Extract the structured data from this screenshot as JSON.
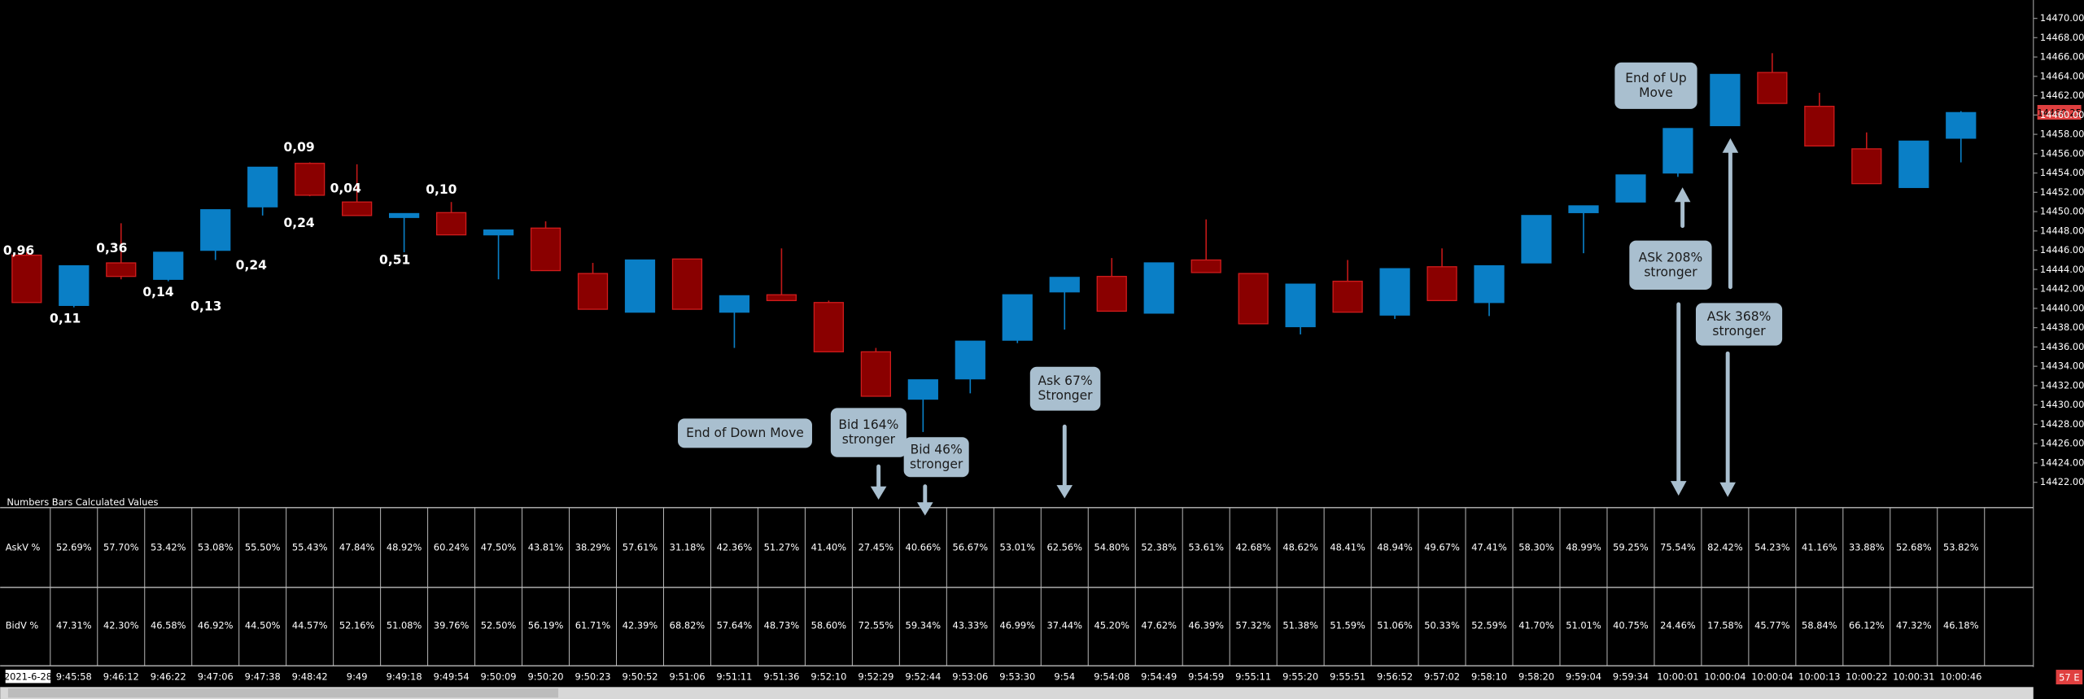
{
  "chart_data": {
    "type": "candlestick",
    "categories": [
      "2021-6-28",
      "9:45:58",
      "9:46:12",
      "9:46:22",
      "9:47:06",
      "9:47:38",
      "9:48:42",
      "9:49",
      "9:49:18",
      "9:49:54",
      "9:50:09",
      "9:50:20",
      "9:50:23",
      "9:50:52",
      "9:51:06",
      "9:51:11",
      "9:51:36",
      "9:52:10",
      "9:52:29",
      "9:52:44",
      "9:53:06",
      "9:53:30",
      "9:54",
      "9:54:08",
      "9:54:49",
      "9:54:59",
      "9:55:11",
      "9:55:20",
      "9:55:51",
      "9:56:52",
      "9:57:02",
      "9:58:10",
      "9:58:20",
      "9:59:04",
      "9:59:34",
      "10:00:01",
      "10:00:04",
      "10:00:04",
      "10:00:13",
      "10:00:22",
      "10:00:31",
      "10:00:46"
    ],
    "open": [
      14445.5,
      14440.3,
      14444.7,
      14443.0,
      14446.0,
      14450.5,
      14455.0,
      14451.0,
      14449.4,
      14449.9,
      14447.6,
      14448.3,
      14443.6,
      14439.6,
      14445.1,
      14439.6,
      14441.4,
      14440.6,
      14435.5,
      14430.6,
      14432.7,
      14436.7,
      14441.7,
      14443.3,
      14439.5,
      14445.0,
      14443.6,
      14438.1,
      14442.8,
      14439.3,
      14444.3,
      14440.6,
      14444.7,
      14449.9,
      14451.0,
      14454.0,
      14458.9,
      14464.4,
      14460.9,
      14456.5,
      14452.5,
      14457.6
    ],
    "high": [
      14445.8,
      14444.4,
      14448.8,
      14445.8,
      14450.2,
      14454.6,
      14455.1,
      14454.9,
      14449.8,
      14451.0,
      14448.1,
      14449.0,
      14444.7,
      14445.0,
      14445.1,
      14441.3,
      14446.2,
      14440.8,
      14435.9,
      14432.6,
      14436.6,
      14441.4,
      14443.2,
      14445.2,
      14444.7,
      14449.2,
      14443.6,
      14442.5,
      14445.0,
      14444.1,
      14446.2,
      14444.4,
      14449.6,
      14450.6,
      14453.8,
      14458.6,
      14464.2,
      14466.4,
      14462.3,
      14458.2,
      14457.3,
      14460.4
    ],
    "low": [
      14440.6,
      14440.1,
      14443.0,
      14442.8,
      14445.0,
      14449.6,
      14451.6,
      14449.6,
      14445.8,
      14447.6,
      14443.0,
      14443.9,
      14439.9,
      14439.6,
      14439.9,
      14435.9,
      14440.8,
      14435.5,
      14430.9,
      14427.2,
      14431.2,
      14436.4,
      14437.8,
      14439.7,
      14439.5,
      14443.7,
      14438.4,
      14437.3,
      14439.6,
      14438.9,
      14440.8,
      14439.2,
      14444.7,
      14445.7,
      14451.0,
      14453.6,
      14458.9,
      14461.2,
      14456.8,
      14452.9,
      14452.5,
      14455.1
    ],
    "close": [
      14440.6,
      14444.4,
      14443.3,
      14445.8,
      14450.2,
      14454.6,
      14451.7,
      14449.6,
      14449.8,
      14447.6,
      14448.1,
      14443.9,
      14439.9,
      14445.0,
      14439.9,
      14441.3,
      14440.8,
      14435.5,
      14430.9,
      14432.6,
      14436.6,
      14441.4,
      14443.2,
      14439.7,
      14444.7,
      14443.7,
      14438.4,
      14442.5,
      14439.6,
      14444.1,
      14440.8,
      14444.4,
      14449.6,
      14450.6,
      14453.8,
      14458.6,
      14464.2,
      14461.2,
      14456.8,
      14452.9,
      14457.3,
      14460.25
    ],
    "up_color": "#0a7fc6",
    "down_color": "#8a0000",
    "ylim": [
      14420.2,
      14471.9
    ],
    "yticks": [
      {
        "value": 14422,
        "label": "14422.00"
      },
      {
        "value": 14424,
        "label": "14424.00"
      },
      {
        "value": 14426,
        "label": "14426.00"
      },
      {
        "value": 14428,
        "label": "14428.00"
      },
      {
        "value": 14430,
        "label": "14430.00"
      },
      {
        "value": 14432,
        "label": "14432.00"
      },
      {
        "value": 14434,
        "label": "14434.00"
      },
      {
        "value": 14436,
        "label": "14436.00"
      },
      {
        "value": 14438,
        "label": "14438.00"
      },
      {
        "value": 14440,
        "label": "14440.00"
      },
      {
        "value": 14442,
        "label": "14442.00"
      },
      {
        "value": 14444,
        "label": "14444.00"
      },
      {
        "value": 14446,
        "label": "14446.00"
      },
      {
        "value": 14448,
        "label": "14448.00"
      },
      {
        "value": 14450,
        "label": "14450.00"
      },
      {
        "value": 14452,
        "label": "14452.00"
      },
      {
        "value": 14454,
        "label": "14454.00"
      },
      {
        "value": 14456,
        "label": "14456.00"
      },
      {
        "value": 14458,
        "label": "14458.00"
      },
      {
        "value": 14460,
        "label": "14460.00"
      },
      {
        "value": 14462,
        "label": "14462.00"
      },
      {
        "value": 14464,
        "label": "14464.00"
      },
      {
        "value": 14466,
        "label": "14466.00"
      },
      {
        "value": 14468,
        "label": "14468.00"
      },
      {
        "value": 14470,
        "label": "14470.00"
      }
    ],
    "price_marker": "14460.25",
    "status_label": "57 E",
    "annotations": [
      "0,96",
      "0,11",
      "0,36",
      "0,14",
      "0,13",
      "0,24",
      "0,24",
      "0,09",
      "0,04",
      "0,51",
      "0,10"
    ],
    "callouts": [
      {
        "lines": [
          "End of Down Move"
        ]
      },
      {
        "lines": [
          "Bid 164%",
          "stronger"
        ]
      },
      {
        "lines": [
          "Bid 46%",
          "stronger"
        ]
      },
      {
        "lines": [
          "Ask 67%",
          "Stronger"
        ]
      },
      {
        "lines": [
          "End of Up",
          "Move"
        ]
      },
      {
        "lines": [
          "ASk 208%",
          "stronger"
        ]
      },
      {
        "lines": [
          "ASk 368%",
          "stronger"
        ]
      }
    ]
  },
  "table": {
    "title": "Numbers Bars Calculated Values",
    "rows": [
      {
        "label": "AskV %",
        "cells": [
          "52.69%",
          "57.70%",
          "53.42%",
          "53.08%",
          "55.50%",
          "55.43%",
          "47.84%",
          "48.92%",
          "60.24%",
          "47.50%",
          "43.81%",
          "38.29%",
          "57.61%",
          "31.18%",
          "42.36%",
          "51.27%",
          "41.40%",
          "27.45%",
          "40.66%",
          "56.67%",
          "53.01%",
          "62.56%",
          "54.80%",
          "52.38%",
          "53.61%",
          "42.68%",
          "48.62%",
          "48.41%",
          "48.94%",
          "49.67%",
          "47.41%",
          "58.30%",
          "48.99%",
          "59.25%",
          "75.54%",
          "82.42%",
          "54.23%",
          "41.16%",
          "33.88%",
          "52.68%",
          "53.82%"
        ]
      },
      {
        "label": "BidV %",
        "cells": [
          "47.31%",
          "42.30%",
          "46.58%",
          "46.92%",
          "44.50%",
          "44.57%",
          "52.16%",
          "51.08%",
          "39.76%",
          "52.50%",
          "56.19%",
          "61.71%",
          "42.39%",
          "68.82%",
          "57.64%",
          "48.73%",
          "58.60%",
          "72.55%",
          "59.34%",
          "43.33%",
          "46.99%",
          "37.44%",
          "45.20%",
          "47.62%",
          "46.39%",
          "57.32%",
          "51.38%",
          "51.59%",
          "51.06%",
          "50.33%",
          "52.59%",
          "41.70%",
          "51.01%",
          "40.75%",
          "24.46%",
          "17.58%",
          "45.77%",
          "58.84%",
          "66.12%",
          "47.32%",
          "46.18%"
        ]
      }
    ]
  }
}
